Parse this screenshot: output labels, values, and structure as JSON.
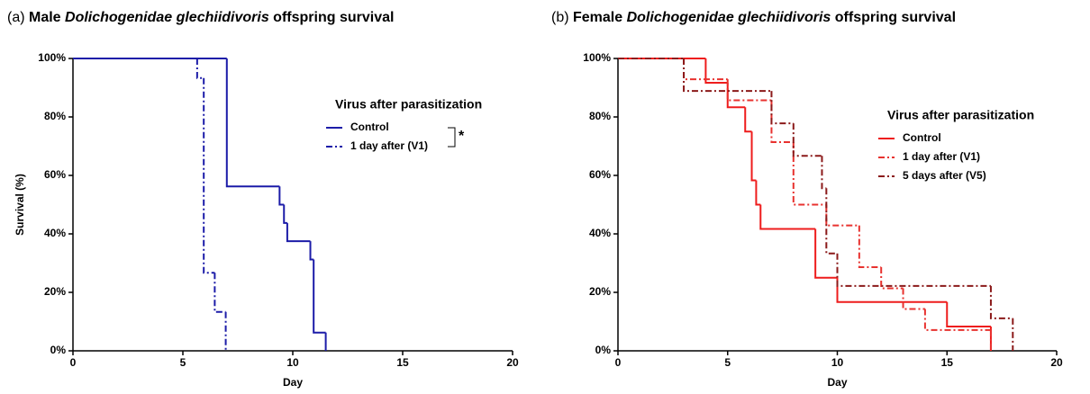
{
  "chart_data": [
    {
      "type": "step",
      "title": [
        "(a) ",
        "Male ",
        "Dolichogenidae glechiidivoris",
        " offspring survival"
      ],
      "title_italic": [
        false,
        false,
        true,
        false
      ],
      "xlabel": "Day",
      "ylabel": "Survival (%)",
      "xlim": [
        0,
        20
      ],
      "xticks": [
        0,
        5,
        10,
        15,
        20
      ],
      "ylim": [
        0,
        100
      ],
      "yticks": [
        {
          "value": 0,
          "label": "0%"
        },
        {
          "value": 20,
          "label": "20%"
        },
        {
          "value": 40,
          "label": "40%"
        },
        {
          "value": 60,
          "label": "60%"
        },
        {
          "value": 80,
          "label": "80%"
        },
        {
          "value": 100,
          "label": "100%"
        }
      ],
      "legend_title": "Virus after parasitization",
      "annotation": "*",
      "series": [
        {
          "name": "Control",
          "color": "#1c1ca8",
          "dash": "solid",
          "x": [
            0,
            7,
            9.4,
            9.6,
            9.75,
            10.8,
            10.95,
            11.5
          ],
          "values": [
            100,
            56.25,
            50,
            43.75,
            37.5,
            31.25,
            6.25,
            0
          ]
        },
        {
          "name": "1 day after (V1)",
          "color": "#1c1ca8",
          "dash": "dashdot",
          "x": [
            0,
            5.65,
            5.95,
            6.45,
            6.95
          ],
          "values": [
            100,
            93.3,
            26.7,
            13.3,
            0
          ]
        }
      ]
    },
    {
      "type": "step",
      "title": [
        "(b) ",
        "Female ",
        "Dolichogenidae glechiidivoris",
        " offspring survival"
      ],
      "title_italic": [
        false,
        false,
        true,
        false
      ],
      "xlabel": "Day",
      "xlim": [
        0,
        20
      ],
      "xticks": [
        0,
        5,
        10,
        15,
        20
      ],
      "ylim": [
        0,
        100
      ],
      "yticks": [
        {
          "value": 0,
          "label": "0%"
        },
        {
          "value": 20,
          "label": "20%"
        },
        {
          "value": 40,
          "label": "40%"
        },
        {
          "value": 60,
          "label": "60%"
        },
        {
          "value": 80,
          "label": "80%"
        },
        {
          "value": 100,
          "label": "100%"
        }
      ],
      "legend_title": "Virus after parasitization",
      "series": [
        {
          "name": "Control",
          "color": "#ee1c1c",
          "dash": "solid",
          "x": [
            0,
            4,
            5,
            5.8,
            6.1,
            6.3,
            6.5,
            9,
            10,
            15,
            17
          ],
          "values": [
            100,
            91.7,
            83.3,
            75,
            58.3,
            50,
            41.7,
            25,
            16.7,
            8.3,
            0
          ]
        },
        {
          "name": "1 day after (V1)",
          "color": "#e8322f",
          "dash": "dashdot",
          "x": [
            0,
            3,
            5,
            7,
            8,
            9.5,
            11,
            12,
            13,
            14,
            17
          ],
          "values": [
            100,
            92.9,
            85.7,
            71.4,
            50,
            42.9,
            28.6,
            21.4,
            14.3,
            7.1,
            0
          ]
        },
        {
          "name": "5 days after (V5)",
          "color": "#8b1a1a",
          "dash": "dashdot",
          "x": [
            0,
            3,
            7,
            8,
            9.3,
            9.5,
            10,
            17,
            18
          ],
          "values": [
            100,
            88.9,
            77.8,
            66.7,
            55.6,
            33.3,
            22.2,
            11.1,
            0
          ]
        }
      ]
    }
  ]
}
